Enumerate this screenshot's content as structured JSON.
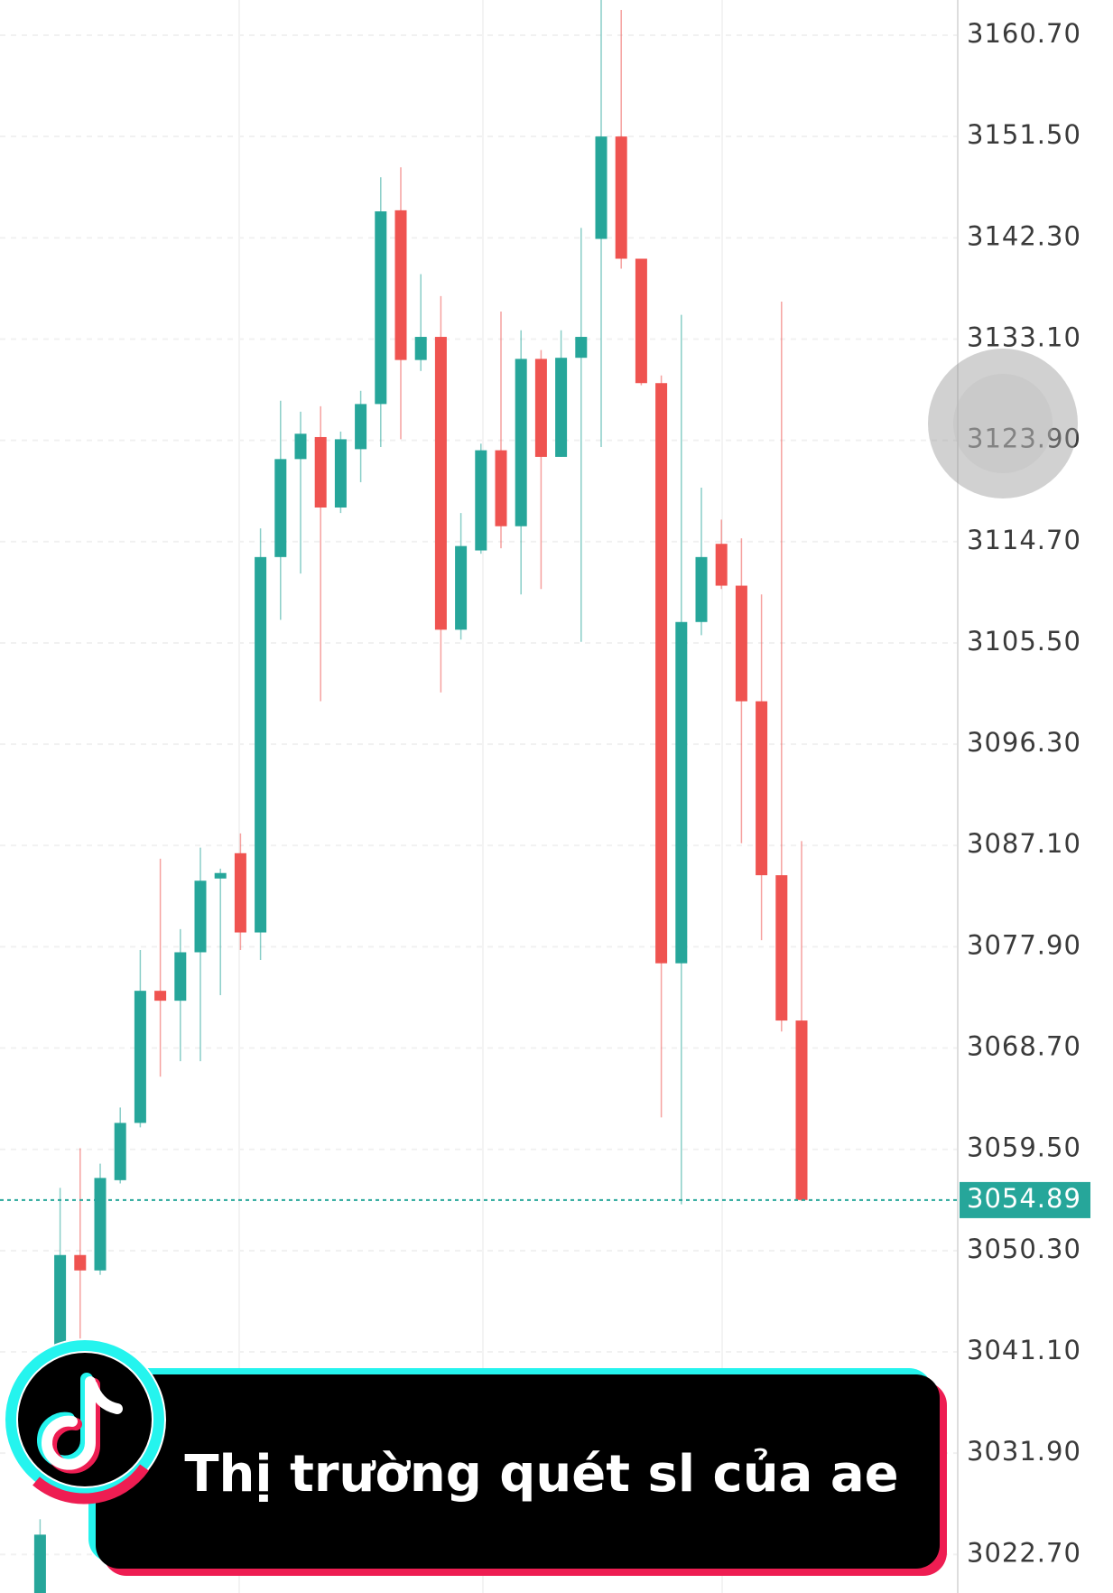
{
  "chart_data": {
    "type": "candlestick",
    "open": [
      3019.2,
      3036.6,
      3049.9,
      3048.5,
      3056.7,
      3061.9,
      3073.9,
      3073.0,
      3077.4,
      3084.1,
      3086.4,
      3079.2,
      3113.3,
      3122.2,
      3124.2,
      3117.8,
      3123.1,
      3127.2,
      3144.8,
      3131.2,
      3133.3,
      3106.7,
      3113.9,
      3123.0,
      3116.1,
      3131.3,
      3122.4,
      3131.4,
      3142.2,
      3151.5,
      3140.4,
      3129.1,
      3076.4,
      3107.4,
      3114.5,
      3110.7,
      3100.2,
      3084.4,
      3071.2
    ],
    "high": [
      3025.9,
      3056.0,
      3059.6,
      3058.2,
      3063.3,
      3077.6,
      3085.9,
      3079.5,
      3086.9,
      3085.0,
      3088.2,
      3115.9,
      3127.5,
      3126.5,
      3127.0,
      3124.7,
      3128.4,
      3147.8,
      3148.7,
      3139.0,
      3137.0,
      3117.3,
      3123.6,
      3135.6,
      3133.9,
      3132.1,
      3133.9,
      3143.2,
      3163.9,
      3163.0,
      3140.4,
      3129.8,
      3135.3,
      3119.6,
      3116.7,
      3115.0,
      3109.9,
      3136.5,
      3087.5
    ],
    "low": [
      3019.2,
      3036.6,
      3036.6,
      3048.1,
      3056.4,
      3061.5,
      3066.1,
      3067.5,
      3067.5,
      3073.5,
      3077.6,
      3076.7,
      3107.6,
      3111.8,
      3100.2,
      3117.3,
      3120.1,
      3123.3,
      3124.0,
      3130.2,
      3101.0,
      3105.8,
      3113.6,
      3114.1,
      3109.9,
      3110.4,
      3122.4,
      3105.6,
      3123.3,
      3139.5,
      3128.9,
      3062.4,
      3054.5,
      3106.2,
      3110.4,
      3087.3,
      3078.5,
      3070.2,
      3054.8
    ],
    "close": [
      3024.5,
      3049.9,
      3048.5,
      3056.9,
      3061.9,
      3073.9,
      3073.0,
      3077.4,
      3083.9,
      3084.6,
      3079.2,
      3113.3,
      3122.2,
      3124.5,
      3117.8,
      3124.0,
      3127.2,
      3144.7,
      3131.2,
      3133.3,
      3106.7,
      3114.3,
      3123.0,
      3116.1,
      3131.3,
      3122.4,
      3131.4,
      3133.3,
      3151.5,
      3140.4,
      3129.1,
      3076.4,
      3107.4,
      3113.3,
      3110.7,
      3100.2,
      3084.4,
      3071.2,
      3054.9
    ],
    "up_color": "#26a69a",
    "down_color": "#ef5350",
    "last_price": 3054.89,
    "ylim": [
      3019.2,
      3163.9
    ],
    "yticks": [
      {
        "value": 3160.7,
        "label": "3160.70"
      },
      {
        "value": 3151.5,
        "label": "3151.50"
      },
      {
        "value": 3142.3,
        "label": "3142.30"
      },
      {
        "value": 3133.1,
        "label": "3133.10"
      },
      {
        "value": 3123.9,
        "label": "3123.90"
      },
      {
        "value": 3114.7,
        "label": "3114.70"
      },
      {
        "value": 3105.5,
        "label": "3105.50"
      },
      {
        "value": 3096.3,
        "label": "3096.30"
      },
      {
        "value": 3087.1,
        "label": "3087.10"
      },
      {
        "value": 3077.9,
        "label": "3077.90"
      },
      {
        "value": 3068.7,
        "label": "3068.70"
      },
      {
        "value": 3059.5,
        "label": "3059.50"
      },
      {
        "value": 3050.3,
        "label": "3050.30"
      },
      {
        "value": 3041.1,
        "label": "3041.10"
      },
      {
        "value": 3031.9,
        "label": "3031.90"
      },
      {
        "value": 3022.7,
        "label": "3022.70"
      }
    ],
    "grid": true
  },
  "caption": "Thị trường quét sl của ae"
}
